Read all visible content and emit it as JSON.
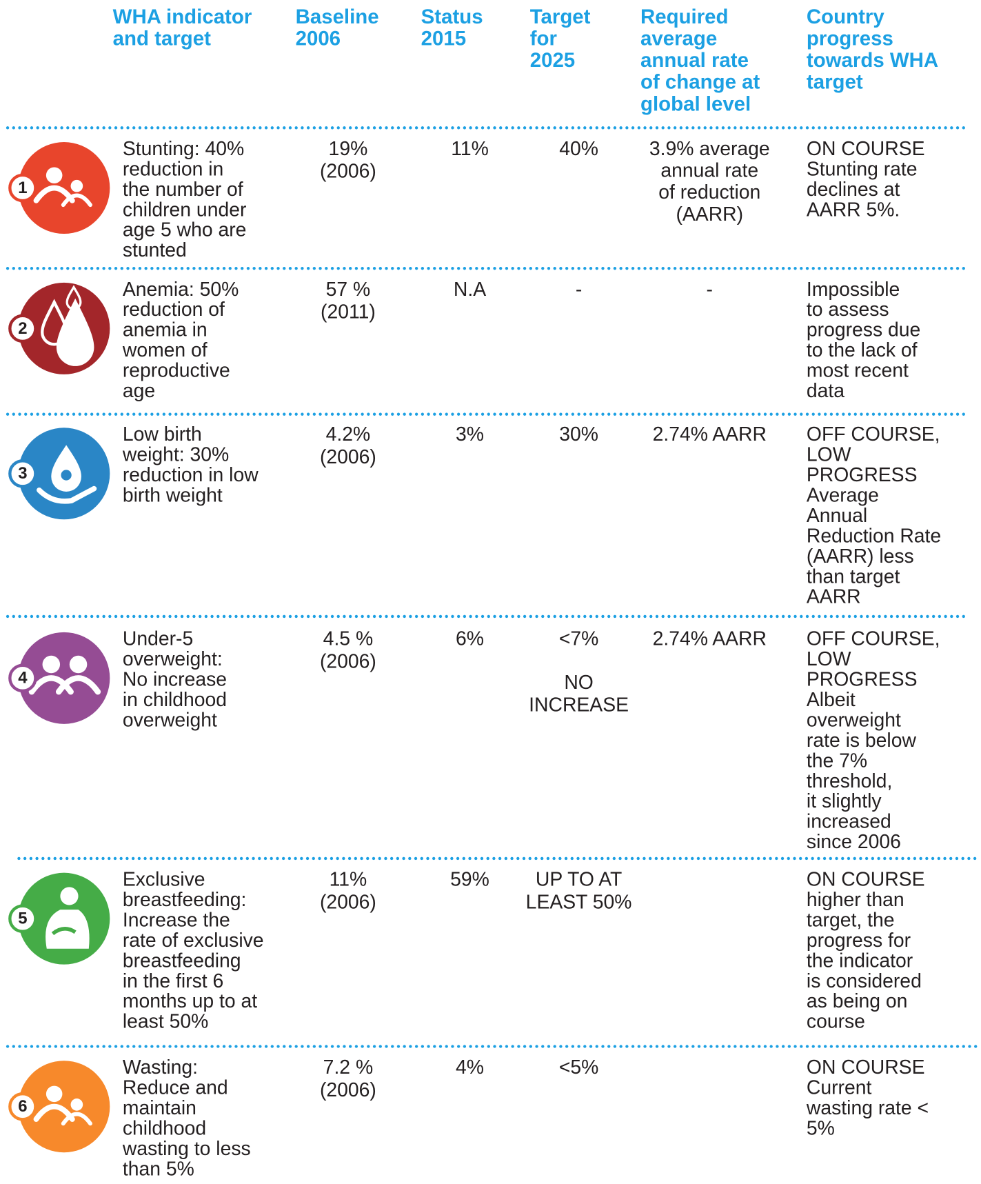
{
  "header": {
    "columns": [
      [
        "WHA indicator",
        "and target"
      ],
      [
        "Baseline",
        "2006"
      ],
      [
        "Status",
        "2015"
      ],
      [
        "Target",
        "for",
        "2025"
      ],
      [
        "Required",
        "average",
        "annual rate",
        "of change at",
        "global level"
      ],
      [
        "Country",
        "progress",
        "towards WHA",
        "target"
      ]
    ]
  },
  "rows": [
    {
      "number": "1",
      "color": "#e8452c",
      "indicator": [
        "Stunting:  40%",
        "reduction in",
        "the number of",
        "children under",
        "age 5 who are",
        "stunted"
      ],
      "baseline": [
        "19%",
        "(2006)"
      ],
      "status": [
        "11%"
      ],
      "target": [
        "40%"
      ],
      "rate": [
        "3.9% average",
        "annual rate",
        "of reduction",
        "(AARR)"
      ],
      "progress": [
        "ON COURSE",
        "Stunting rate",
        "declines at",
        "AARR 5%."
      ]
    },
    {
      "number": "2",
      "color": "#a3262a",
      "indicator": [
        "Anemia: 50%",
        "reduction of",
        "anemia in",
        "women of",
        "reproductive",
        "age"
      ],
      "baseline": [
        "57 %",
        "(2011)"
      ],
      "status": [
        "N.A"
      ],
      "target": [
        "-"
      ],
      "rate": [
        "-"
      ],
      "progress": [
        "Impossible",
        "to assess",
        "progress due",
        "to the lack of",
        "most recent",
        "data"
      ]
    },
    {
      "number": "3",
      "color": "#2a86c6",
      "indicator": [
        "Low birth",
        "weight:  30%",
        "reduction in low",
        "birth weight"
      ],
      "baseline": [
        "4.2%",
        "(2006)"
      ],
      "status": [
        "3%"
      ],
      "target": [
        "30%"
      ],
      "rate": [
        "2.74% AARR"
      ],
      "progress": [
        "OFF COURSE,",
        "LOW",
        "PROGRESS",
        "Average",
        "Annual",
        "Reduction Rate",
        "(AARR) less",
        "than target",
        "AARR"
      ]
    },
    {
      "number": "4",
      "color": "#954c94",
      "indicator": [
        "Under-5",
        "overweight:",
        "No increase",
        "in childhood",
        "overweight"
      ],
      "baseline": [
        "4.5 %",
        "(2006)"
      ],
      "status": [
        "6%"
      ],
      "target": [
        "<7%"
      ],
      "target_note": [
        "NO",
        "INCREASE"
      ],
      "rate": [
        "2.74% AARR"
      ],
      "progress": [
        "OFF COURSE,",
        "LOW",
        "PROGRESS",
        "Albeit",
        "overweight",
        "rate is below",
        "the 7%",
        "threshold,",
        "it slightly",
        "increased",
        "since 2006"
      ]
    },
    {
      "number": "5",
      "color": "#45ac47",
      "indicator": [
        "Exclusive",
        "breastfeeding:",
        "Increase the",
        "rate of exclusive",
        "breastfeeding",
        "in the first 6",
        "months up to at",
        "least 50%"
      ],
      "baseline": [
        "11%",
        "(2006)"
      ],
      "status": [
        "59%"
      ],
      "target": [
        "UP TO AT",
        "LEAST 50%"
      ],
      "progress": [
        "ON COURSE",
        "higher than",
        "target, the",
        "progress for",
        "the indicator",
        "is considered",
        "as being on",
        "course"
      ]
    },
    {
      "number": "6",
      "color": "#f7892b",
      "indicator": [
        "Wasting:",
        "Reduce and",
        "maintain",
        "childhood",
        "wasting to less",
        "than 5%"
      ],
      "baseline": [
        "7.2 %",
        "(2006)"
      ],
      "status": [
        "4%"
      ],
      "target": [
        "<5%"
      ],
      "progress": [
        "ON COURSE",
        "Current",
        "wasting rate <",
        "5%"
      ]
    }
  ]
}
